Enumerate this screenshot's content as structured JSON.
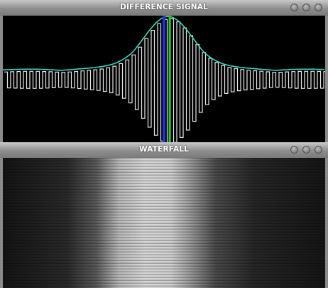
{
  "windows": [
    {
      "title": "DIFFERENCE SIGNAL"
    },
    {
      "title": "WATERFALL"
    }
  ]
}
